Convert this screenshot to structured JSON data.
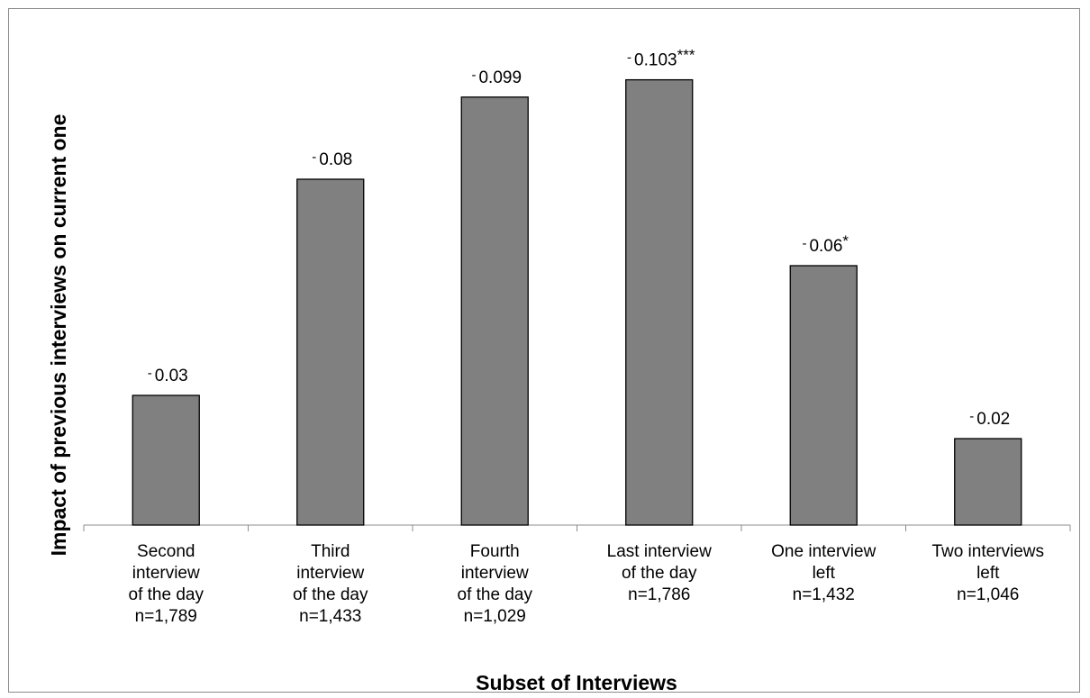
{
  "chart_data": {
    "type": "bar",
    "title": "",
    "xlabel": "Subset of Interviews",
    "ylabel": "Impact of previous interviews on current one",
    "categories": [
      [
        "Second",
        "interview",
        "of the day",
        "n=1,789"
      ],
      [
        "Third",
        "interview",
        "of the day",
        "n=1,433"
      ],
      [
        "Fourth",
        "interview",
        "of the day",
        "n=1,029"
      ],
      [
        "Last interview",
        "of the day",
        "n=1,786"
      ],
      [
        "One interview",
        "left",
        "n=1,432"
      ],
      [
        "Two interviews",
        "left",
        "n=1,046"
      ]
    ],
    "values": [
      -0.03,
      -0.08,
      -0.099,
      -0.103,
      -0.06,
      -0.02
    ],
    "data_labels": [
      [
        "-",
        "0.03",
        ""
      ],
      [
        "-",
        "0.08",
        ""
      ],
      [
        "-",
        "0.099",
        ""
      ],
      [
        "-",
        "0.103",
        "***"
      ],
      [
        "-",
        "0.06",
        "*"
      ],
      [
        "-",
        "0.02",
        ""
      ]
    ],
    "ylim": [
      0,
      -0.11
    ],
    "grid": false,
    "legend": "none",
    "bar_color": "#808080",
    "bar_stroke": "#000000"
  }
}
